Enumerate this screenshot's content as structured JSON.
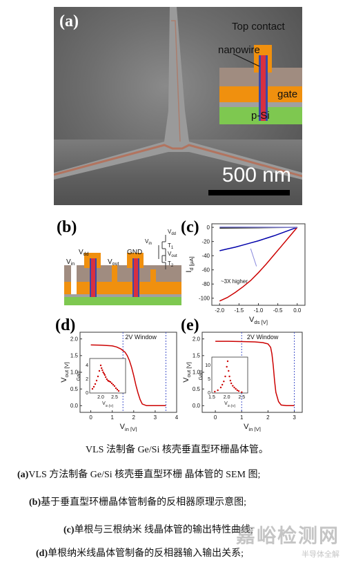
{
  "panel_a": {
    "letter": "(a)",
    "scale_label": "500 nm",
    "inset_labels": {
      "top_contact": "Top contact",
      "nanowire": "nanowire",
      "gate": "gate",
      "substrate": "p-Si"
    }
  },
  "panel_b": {
    "letter": "(b)",
    "labels": {
      "vin": "V",
      "vin_sub": "in",
      "vdd": "V",
      "vdd_sub": "dd",
      "vout": "V",
      "vout_sub": "out",
      "gnd": "GND",
      "t1": "T",
      "t1_sub": "1",
      "t2": "T",
      "t2_sub": "2"
    }
  },
  "panel_c": {
    "letter": "(c)",
    "annotation": "~3X higher"
  },
  "panel_d": {
    "letter": "(d)",
    "window_label": "2V Window"
  },
  "panel_e": {
    "letter": "(e)",
    "window_label": "2V Window"
  },
  "chart_data": [
    {
      "id": "c",
      "type": "line",
      "xlabel": "V_ds [V]",
      "ylabel": "I_d [μA]",
      "xlim": [
        -2.2,
        0.2
      ],
      "ylim": [
        -110,
        5
      ],
      "xticks": [
        "-2.0",
        "-1.5",
        "-1.0",
        "-0.5",
        "0.0"
      ],
      "yticks": [
        "0",
        "-20",
        "-40",
        "-60",
        "-80",
        "-100"
      ],
      "series": [
        {
          "color": "#cc0000",
          "x": [
            -2.0,
            -1.8,
            -1.6,
            -1.4,
            -1.2,
            -1.0,
            -0.8,
            -0.6,
            -0.4,
            -0.2,
            0.0
          ],
          "y": [
            -104,
            -99,
            -92,
            -84,
            -75,
            -64,
            -52,
            -39,
            -26,
            -13,
            0
          ]
        },
        {
          "color": "#0000aa",
          "x": [
            -2.0,
            -1.8,
            -1.6,
            -1.4,
            -1.2,
            -1.0,
            -0.8,
            -0.6,
            -0.4,
            -0.2,
            0.0
          ],
          "y": [
            -33,
            -30.5,
            -28,
            -25,
            -22,
            -19,
            -15.5,
            -12,
            -8,
            -4,
            0
          ]
        },
        {
          "color": "#222222",
          "x": [
            -2.0,
            -1.5,
            -1.0,
            -0.5,
            0.0
          ],
          "y": [
            -1,
            -0.8,
            -0.6,
            -0.3,
            0
          ]
        },
        {
          "color": "#8888dd",
          "x": [
            -2.0,
            -1.5,
            -1.0,
            -0.5,
            0.0
          ],
          "y": [
            0.3,
            0.3,
            0.2,
            0.1,
            0
          ]
        }
      ]
    },
    {
      "id": "d",
      "type": "line",
      "xlabel": "V_in [V]",
      "ylabel": "V_out [V]",
      "xlim": [
        -0.5,
        4
      ],
      "ylim": [
        -0.2,
        2.2
      ],
      "xticks": [
        "0",
        "1",
        "2",
        "3",
        "4"
      ],
      "yticks": [
        "0.0",
        "0.5",
        "1.0",
        "1.5",
        "2.0"
      ],
      "window_x": [
        1.5,
        3.5
      ],
      "series": [
        {
          "color": "#cc0000",
          "x": [
            0.0,
            0.5,
            1.0,
            1.2,
            1.4,
            1.6,
            1.7,
            1.8,
            1.9,
            2.0,
            2.1,
            2.2,
            2.3,
            2.4,
            2.6,
            3.0,
            3.5
          ],
          "y": [
            1.82,
            1.81,
            1.79,
            1.76,
            1.7,
            1.6,
            1.5,
            1.35,
            1.15,
            0.9,
            0.62,
            0.38,
            0.18,
            0.05,
            0.0,
            0.0,
            0.0
          ]
        }
      ],
      "inset": {
        "xlabel": "V_in [V]",
        "ylabel": "Gain",
        "xlim": [
          1.6,
          2.9
        ],
        "ylim": [
          0,
          5
        ],
        "xticks": [
          "2.0",
          "2.5"
        ],
        "yticks": [
          "0",
          "2",
          "4"
        ],
        "points": {
          "x": [
            1.7,
            1.75,
            1.8,
            1.85,
            1.9,
            1.95,
            2.0,
            2.03,
            2.06,
            2.09,
            2.12,
            2.15,
            2.18,
            2.22,
            2.26,
            2.3,
            2.35,
            2.4,
            2.45,
            2.5,
            2.55,
            2.6,
            2.65
          ],
          "y": [
            0.6,
            0.9,
            1.3,
            1.8,
            2.4,
            3.2,
            4.0,
            3.6,
            3.3,
            3.0,
            2.8,
            2.6,
            2.3,
            2.0,
            1.8,
            1.7,
            1.6,
            1.4,
            1.2,
            1.0,
            0.7,
            0.5,
            0.3
          ]
        }
      }
    },
    {
      "id": "e",
      "type": "line",
      "xlabel": "V_in [V]",
      "ylabel": "V_out [V]",
      "xlim": [
        -0.5,
        3.3
      ],
      "ylim": [
        -0.2,
        2.2
      ],
      "xticks": [
        "0",
        "1",
        "2",
        "3"
      ],
      "yticks": [
        "0.0",
        "0.5",
        "1.0",
        "1.5",
        "2.0"
      ],
      "window_x": [
        1.0,
        3.0
      ],
      "series": [
        {
          "color": "#cc0000",
          "x": [
            0.0,
            0.5,
            1.0,
            1.5,
            1.8,
            2.0,
            2.1,
            2.15,
            2.2,
            2.25,
            2.3,
            2.4,
            2.5,
            2.7,
            3.0
          ],
          "y": [
            1.93,
            1.93,
            1.92,
            1.91,
            1.89,
            1.85,
            1.75,
            1.55,
            1.2,
            0.75,
            0.4,
            0.12,
            0.02,
            0.0,
            0.0
          ]
        }
      ],
      "inset": {
        "xlabel": "V_in [V]",
        "ylabel": "Gain",
        "xlim": [
          1.5,
          2.7
        ],
        "ylim": [
          0,
          13
        ],
        "xticks": [
          "1.5",
          "2.0",
          "2.5"
        ],
        "yticks": [
          "0",
          "5",
          "10"
        ],
        "points": {
          "x": [
            1.6,
            1.7,
            1.8,
            1.85,
            1.9,
            1.95,
            2.0,
            2.03,
            2.06,
            2.09,
            2.12,
            2.15,
            2.2,
            2.25,
            2.3,
            2.35,
            2.4,
            2.5
          ],
          "y": [
            0.5,
            1.0,
            2.0,
            3.0,
            4.2,
            6.0,
            9.5,
            11.5,
            8.0,
            6.0,
            4.5,
            3.5,
            2.6,
            2.0,
            1.5,
            1.0,
            0.7,
            0.3
          ]
        }
      }
    }
  ],
  "caption": {
    "title": "VLS 法制备 Ge/Si 核壳垂直型环栅晶体管。",
    "line_a_tag": "(a)",
    "line_a": "VLS 方法制备 Ge/Si 核壳垂直型环栅 晶体管的 SEM 图;",
    "line_b_tag": "(b)",
    "line_b": "基于垂直型环栅晶体管制备的反相器原理示意图;",
    "line_c_tag": "(c)",
    "line_c": "单根与三根纳米  线晶体管的输出特性曲线;",
    "line_d_tag": "(d)",
    "line_d": "单根纳米线晶体管制备的反相器输入输出关系;"
  },
  "watermark": {
    "main": "嘉峪检测网",
    "sub": "半导体全解"
  }
}
